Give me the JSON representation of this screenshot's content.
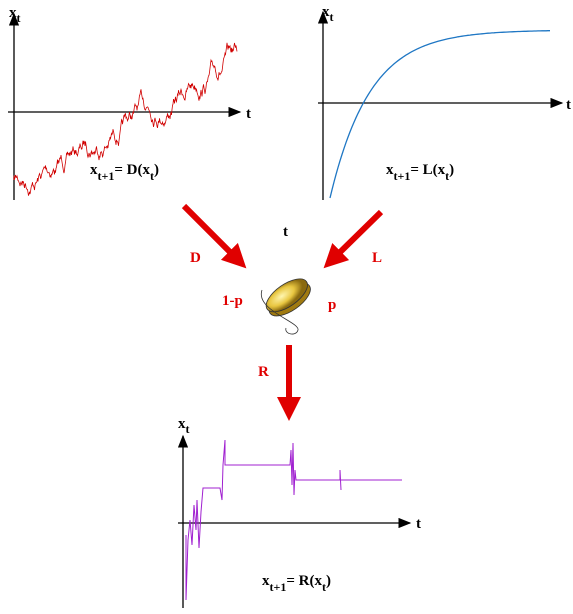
{
  "panels": [
    {
      "y_label": "x",
      "y_sub": "t",
      "x_label": "t",
      "equation": [
        "x",
        "t+1",
        "= D(x",
        "t",
        ")"
      ]
    },
    {
      "y_label": "x",
      "y_sub": "t",
      "x_label": "t",
      "equation": [
        "x",
        "t+1",
        "= L(x",
        "t",
        ")"
      ]
    },
    {
      "y_label": "x",
      "y_sub": "t",
      "x_label": "t",
      "equation": [
        "x",
        "t+1",
        "= R(x",
        "t",
        ")"
      ]
    }
  ],
  "center": {
    "d": "D",
    "l": "L",
    "t": "t",
    "one_minus_p": "1-p",
    "p": "p",
    "r": "R"
  }
}
